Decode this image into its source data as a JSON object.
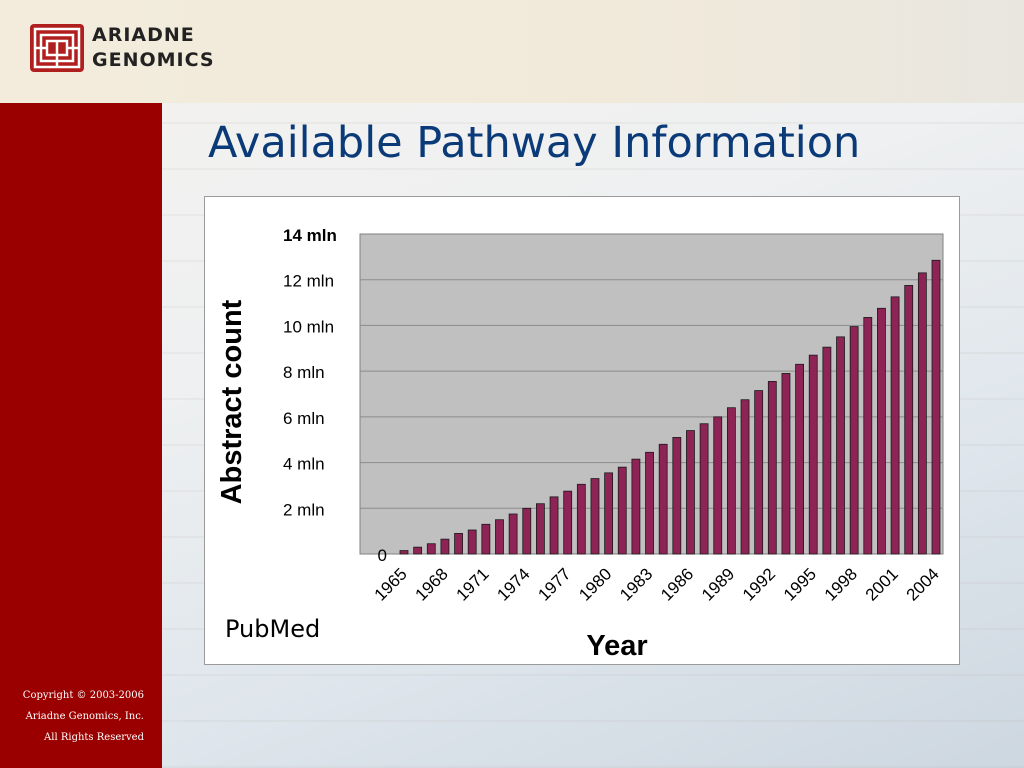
{
  "header": {
    "logo_line1": "ARIADNE",
    "logo_line2": "GENOMICS"
  },
  "slide": {
    "title": "Available Pathway Information",
    "source": "PubMed"
  },
  "footer": {
    "copyright_line1": "Copyright © 2003-2006",
    "copyright_line2": "Ariadne Genomics, Inc.",
    "copyright_line3": "All Rights Reserved"
  },
  "colors": {
    "sidebar": "#9b0000",
    "title": "#0b3a78",
    "bar_fill": "#8e2456",
    "plot_bg": "#c0c0c0"
  },
  "chart_data": {
    "type": "bar",
    "title": "",
    "xlabel": "Year",
    "ylabel": "Abstract count",
    "ylim": [
      0,
      14000000
    ],
    "yticks": [
      {
        "value": 0,
        "label": "0"
      },
      {
        "value": 2000000,
        "label": "2 mln"
      },
      {
        "value": 4000000,
        "label": "4 mln"
      },
      {
        "value": 6000000,
        "label": "6 mln"
      },
      {
        "value": 8000000,
        "label": "8 mln"
      },
      {
        "value": 10000000,
        "label": "10 mln"
      },
      {
        "value": 12000000,
        "label": "12 mln"
      },
      {
        "value": 14000000,
        "label": "14 mln"
      }
    ],
    "xtick_labels": [
      "1965",
      "1968",
      "1971",
      "1974",
      "1977",
      "1980",
      "1983",
      "1986",
      "1989",
      "1992",
      "1995",
      "1998",
      "2001",
      "2004"
    ],
    "grid": true,
    "categories": [
      "1965",
      "1966",
      "1967",
      "1968",
      "1969",
      "1970",
      "1971",
      "1972",
      "1973",
      "1974",
      "1975",
      "1976",
      "1977",
      "1978",
      "1979",
      "1980",
      "1981",
      "1982",
      "1983",
      "1984",
      "1985",
      "1986",
      "1987",
      "1988",
      "1989",
      "1990",
      "1991",
      "1992",
      "1993",
      "1994",
      "1995",
      "1996",
      "1997",
      "1998",
      "1999",
      "2000",
      "2001",
      "2002",
      "2003",
      "2004"
    ],
    "values": [
      150000,
      300000,
      450000,
      650000,
      900000,
      1050000,
      1300000,
      1500000,
      1750000,
      2000000,
      2200000,
      2500000,
      2750000,
      3050000,
      3300000,
      3550000,
      3800000,
      4150000,
      4450000,
      4800000,
      5100000,
      5400000,
      5700000,
      6000000,
      6400000,
      6750000,
      7150000,
      7550000,
      7900000,
      8300000,
      8700000,
      9050000,
      9500000,
      9950000,
      10350000,
      10750000,
      11250000,
      11750000,
      12300000,
      12850000
    ]
  }
}
